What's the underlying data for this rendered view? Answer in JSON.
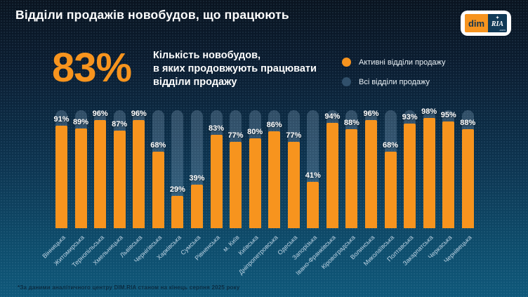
{
  "header": {
    "title": "Відділи продажів новобудов, що працюють",
    "logo": {
      "dim": "dim",
      "ria": "RIA",
      "com": ".com",
      "star": "✦"
    }
  },
  "highlight": {
    "value": "83%",
    "description_lines": [
      "Кількість новобудов,",
      "в яких продовжують працювати",
      "відділи продажу"
    ]
  },
  "legend": {
    "items": [
      {
        "label": "Активні відділи продажу",
        "color": "#F7941E"
      },
      {
        "label": "Всі відділи продажу",
        "color": "#31506B"
      }
    ]
  },
  "chart_data": {
    "type": "bar",
    "title": "Відділи продажів новобудов, що працюють",
    "categories": [
      "Вінницька",
      "Житомирська",
      "Тернопільська",
      "Хмельницька",
      "Львівська",
      "Чернігівська",
      "Харківська",
      "Сумська",
      "Рівненська",
      "м. Київ",
      "Київська",
      "Дніпропетровська",
      "Одеська",
      "Запорізька",
      "Івано-Франківська",
      "Кіровоградська",
      "Волинська",
      "Миколаївська",
      "Полтавська",
      "Закарпатська",
      "Черкаська",
      "Чернівецька"
    ],
    "series": [
      {
        "name": "Активні відділи продажу",
        "values": [
          91,
          89,
          96,
          87,
          96,
          68,
          29,
          39,
          83,
          77,
          80,
          86,
          77,
          41,
          94,
          88,
          96,
          68,
          93,
          98,
          95,
          88
        ],
        "color": "#F7941E"
      },
      {
        "name": "Всі відділи продажу",
        "values": [
          100,
          100,
          100,
          100,
          100,
          100,
          100,
          100,
          100,
          100,
          100,
          100,
          100,
          100,
          100,
          100,
          100,
          100,
          100,
          100,
          100,
          100
        ],
        "color": "rgba(181,214,240,0.22)"
      }
    ],
    "value_suffix": "%",
    "ylim": [
      0,
      100
    ],
    "grid": false,
    "legend_position": "top-right",
    "xlabel": "",
    "ylabel": ""
  },
  "footer": {
    "note": "*За даними аналітичного центру DIM.RIA станом на кінець серпня 2025 року"
  },
  "colors": {
    "background_top": "#0A1420",
    "background_bottom": "#0F587A",
    "accent_orange": "#F7941E",
    "track_blue": "rgba(181,214,240,0.22)",
    "legend_all_dot": "#31506B",
    "text_primary": "#FFFFFF",
    "footnote_text": "#0A2C42"
  }
}
